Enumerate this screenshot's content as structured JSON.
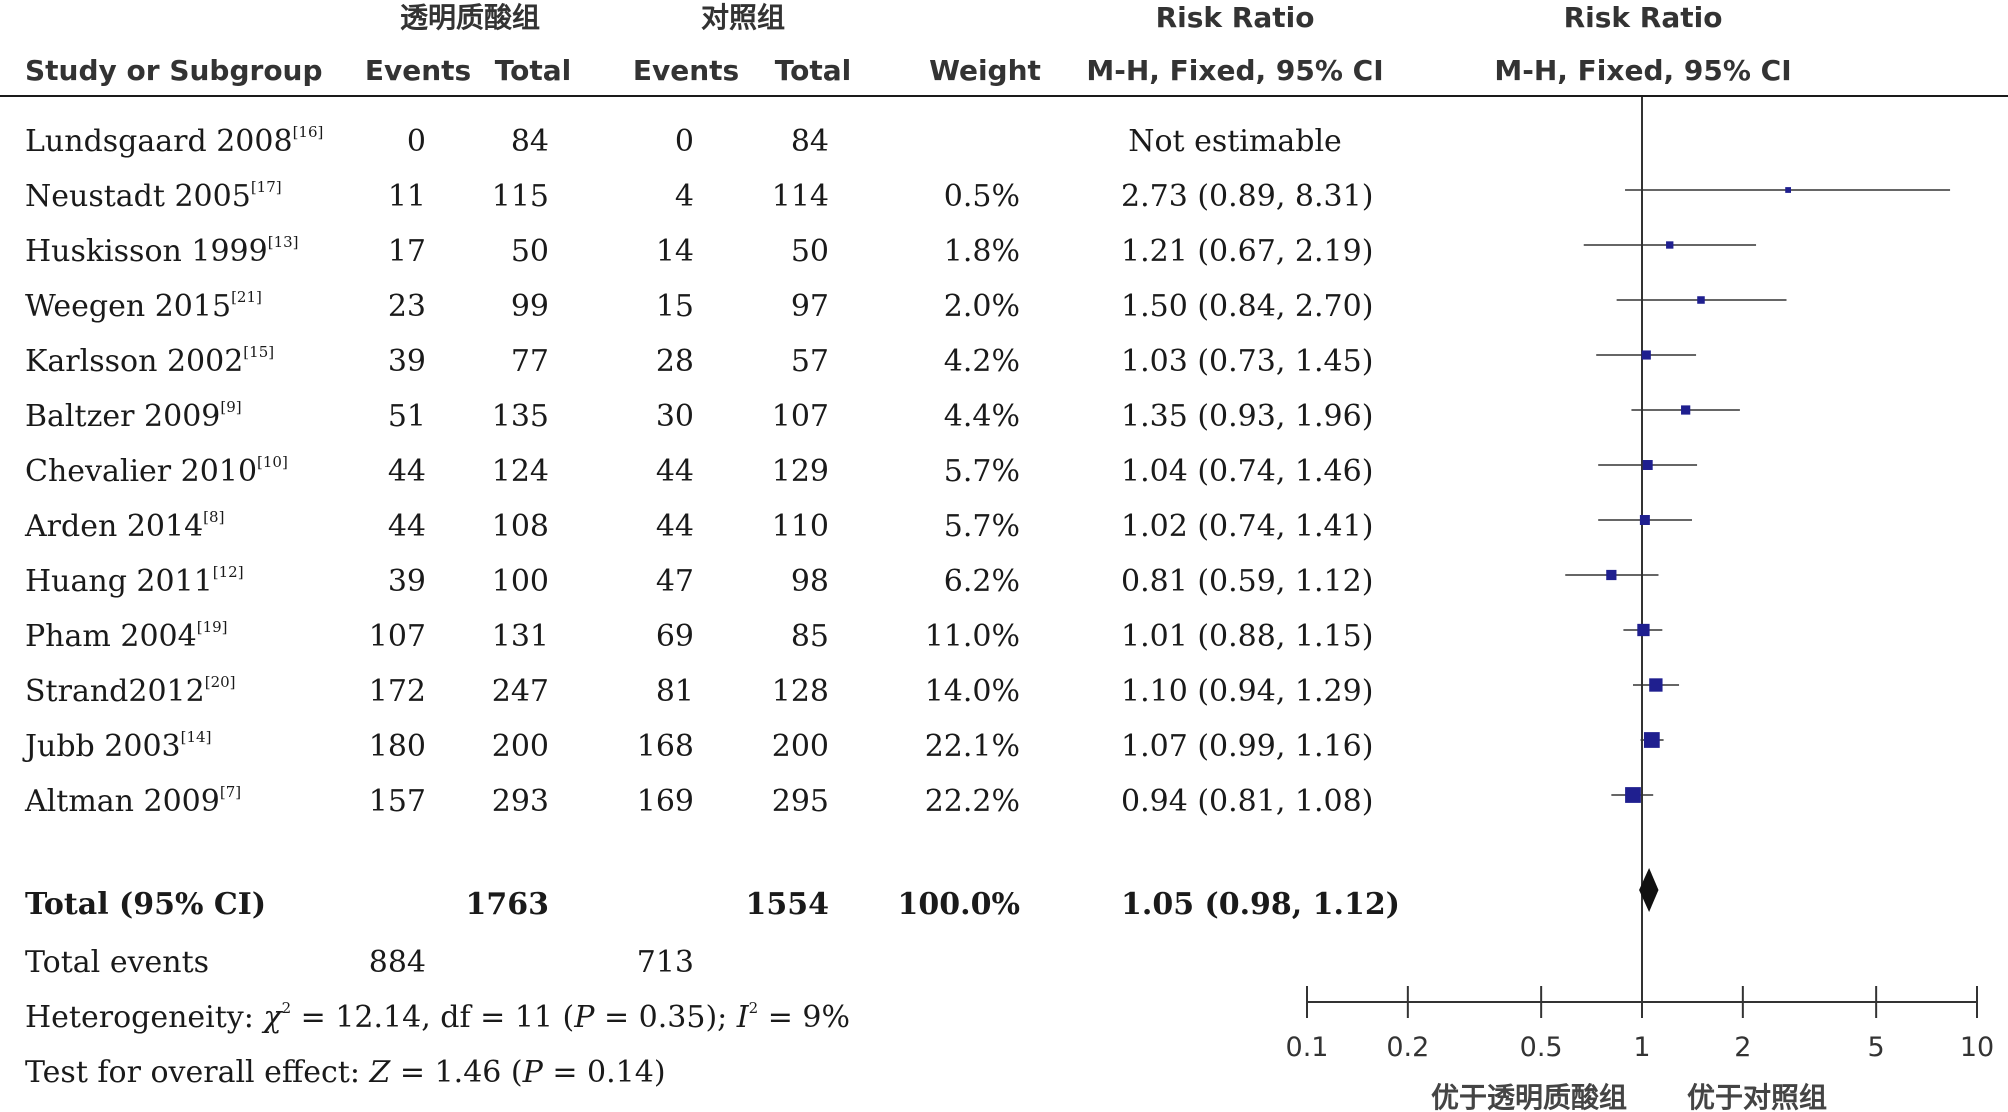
{
  "headers": {
    "group1": "透明质酸组",
    "group2": "对照组",
    "rr_top_table": "Risk Ratio",
    "rr_top_plot": "Risk Ratio",
    "study": "Study or Subgroup",
    "events1": "Events",
    "total1": "Total",
    "events2": "Events",
    "total2": "Total",
    "weight": "Weight",
    "method_table": "M-H, Fixed, 95% CI",
    "method_plot": "M-H, Fixed, 95% CI"
  },
  "studies": [
    {
      "name": "Lundsgaard 2008",
      "ref": "[16]",
      "e1": "0",
      "t1": "84",
      "e2": "0",
      "t2": "84",
      "weight": "",
      "ci": "Not estimable"
    },
    {
      "name": "Neustadt 2005",
      "ref": "[17]",
      "e1": "11",
      "t1": "115",
      "e2": "4",
      "t2": "114",
      "weight": "0.5%",
      "ci": "2.73 (0.89, 8.31)"
    },
    {
      "name": "Huskisson 1999",
      "ref": "[13]",
      "e1": "17",
      "t1": "50",
      "e2": "14",
      "t2": "50",
      "weight": "1.8%",
      "ci": "1.21 (0.67, 2.19)"
    },
    {
      "name": "Weegen 2015",
      "ref": "[21]",
      "e1": "23",
      "t1": "99",
      "e2": "15",
      "t2": "97",
      "weight": "2.0%",
      "ci": "1.50 (0.84, 2.70)"
    },
    {
      "name": "Karlsson 2002",
      "ref": "[15]",
      "e1": "39",
      "t1": "77",
      "e2": "28",
      "t2": "57",
      "weight": "4.2%",
      "ci": "1.03 (0.73, 1.45)"
    },
    {
      "name": "Baltzer 2009",
      "ref": "[9]",
      "e1": "51",
      "t1": "135",
      "e2": "30",
      "t2": "107",
      "weight": "4.4%",
      "ci": "1.35 (0.93, 1.96)"
    },
    {
      "name": "Chevalier 2010",
      "ref": "[10]",
      "e1": "44",
      "t1": "124",
      "e2": "44",
      "t2": "129",
      "weight": "5.7%",
      "ci": "1.04 (0.74, 1.46)"
    },
    {
      "name": "Arden 2014",
      "ref": "[8]",
      "e1": "44",
      "t1": "108",
      "e2": "44",
      "t2": "110",
      "weight": "5.7%",
      "ci": "1.02 (0.74, 1.41)"
    },
    {
      "name": "Huang 2011",
      "ref": "[12]",
      "e1": "39",
      "t1": "100",
      "e2": "47",
      "t2": "98",
      "weight": "6.2%",
      "ci": "0.81 (0.59, 1.12)"
    },
    {
      "name": "Pham 2004",
      "ref": "[19]",
      "e1": "107",
      "t1": "131",
      "e2": "69",
      "t2": "85",
      "weight": "11.0%",
      "ci": "1.01 (0.88, 1.15)"
    },
    {
      "name": "Strand2012",
      "ref": "[20]",
      "e1": "172",
      "t1": "247",
      "e2": "81",
      "t2": "128",
      "weight": "14.0%",
      "ci": "1.10 (0.94, 1.29)"
    },
    {
      "name": "Jubb 2003",
      "ref": "[14]",
      "e1": "180",
      "t1": "200",
      "e2": "168",
      "t2": "200",
      "weight": "22.1%",
      "ci": "1.07 (0.99, 1.16)"
    },
    {
      "name": "Altman 2009",
      "ref": "[7]",
      "e1": "157",
      "t1": "293",
      "e2": "169",
      "t2": "295",
      "weight": "22.2%",
      "ci": "0.94 (0.81, 1.08)"
    }
  ],
  "total": {
    "label": "Total (95% CI)",
    "t1": "1763",
    "t2": "1554",
    "weight": "100.0%",
    "ci": "1.05 (0.98, 1.12)"
  },
  "total_events": {
    "label": "Total events",
    "e1": "884",
    "e2": "713"
  },
  "heterogeneity": {
    "prefix": "Heterogeneity: ",
    "chi": "χ",
    "sq": "2",
    "stat": " = 12.14, df = 11 (",
    "p": "P",
    "pval": " = 0.35); ",
    "i": "I",
    "i_sq": "2",
    "i_val": " = 9%"
  },
  "overall_effect": {
    "prefix": "Test for overall effect: ",
    "z": "Z",
    "zval": " = 1.46 (",
    "p": "P",
    "pval": " = 0.14)"
  },
  "chart_data": {
    "type": "forest",
    "scale": "log",
    "xlim": [
      0.1,
      10
    ],
    "ticks": [
      0.1,
      0.2,
      0.5,
      1,
      2,
      5,
      10
    ],
    "tick_labels": [
      "0.1",
      "0.2",
      "0.5",
      "1",
      "2",
      "5",
      "10"
    ],
    "favors_left": "优于透明质酸组",
    "favors_right": "优于对照组",
    "marker_color": "#1f1f8f",
    "studies": [
      {
        "rr": 2.73,
        "lo": 0.89,
        "hi": 8.31,
        "weight": 0.5
      },
      {
        "rr": 1.21,
        "lo": 0.67,
        "hi": 2.19,
        "weight": 1.8
      },
      {
        "rr": 1.5,
        "lo": 0.84,
        "hi": 2.7,
        "weight": 2.0
      },
      {
        "rr": 1.03,
        "lo": 0.73,
        "hi": 1.45,
        "weight": 4.2
      },
      {
        "rr": 1.35,
        "lo": 0.93,
        "hi": 1.96,
        "weight": 4.4
      },
      {
        "rr": 1.04,
        "lo": 0.74,
        "hi": 1.46,
        "weight": 5.7
      },
      {
        "rr": 1.02,
        "lo": 0.74,
        "hi": 1.41,
        "weight": 5.7
      },
      {
        "rr": 0.81,
        "lo": 0.59,
        "hi": 1.12,
        "weight": 6.2
      },
      {
        "rr": 1.01,
        "lo": 0.88,
        "hi": 1.15,
        "weight": 11.0
      },
      {
        "rr": 1.1,
        "lo": 0.94,
        "hi": 1.29,
        "weight": 14.0
      },
      {
        "rr": 1.07,
        "lo": 0.99,
        "hi": 1.16,
        "weight": 22.1
      },
      {
        "rr": 0.94,
        "lo": 0.81,
        "hi": 1.08,
        "weight": 22.2
      }
    ],
    "total": {
      "rr": 1.05,
      "lo": 0.98,
      "hi": 1.12
    }
  }
}
